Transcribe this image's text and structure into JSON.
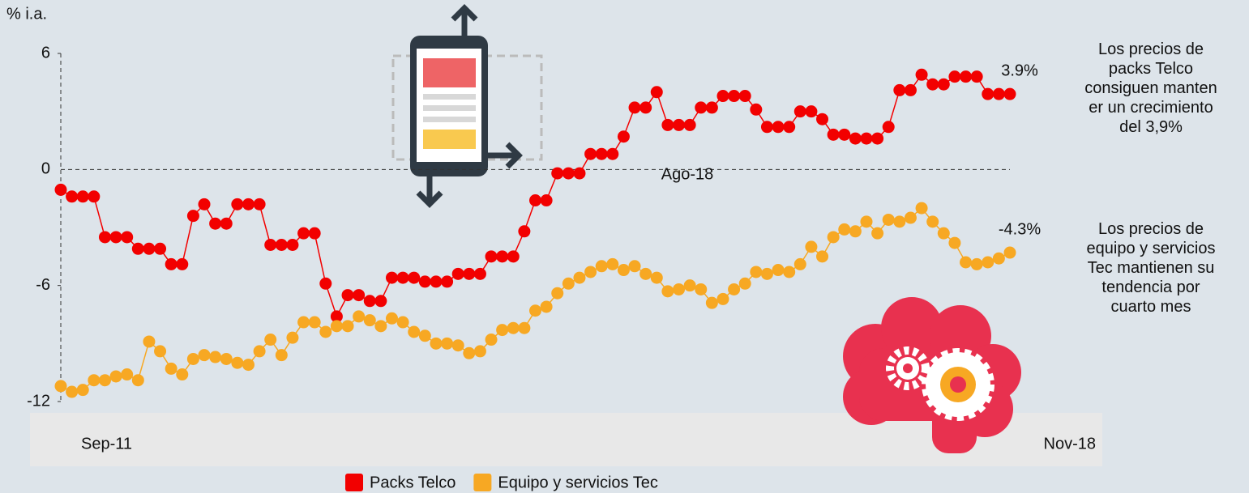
{
  "chart_data": {
    "type": "line",
    "y_axis_label": "% i.a.",
    "categories": [
      "Sep-11",
      null,
      null,
      null,
      null,
      null,
      null,
      null,
      null,
      null,
      null,
      null,
      null,
      null,
      null,
      null,
      null,
      null,
      null,
      null,
      null,
      null,
      null,
      null,
      null,
      null,
      null,
      null,
      null,
      null,
      null,
      null,
      null,
      null,
      null,
      null,
      null,
      null,
      null,
      null,
      null,
      null,
      null,
      null,
      null,
      null,
      null,
      null,
      null,
      null,
      null,
      null,
      null,
      null,
      null,
      null,
      null,
      null,
      null,
      null,
      null,
      null,
      null,
      null,
      null,
      null,
      null,
      null,
      null,
      null,
      null,
      null,
      null,
      null,
      null,
      null,
      null,
      null,
      null,
      null,
      null,
      null,
      null,
      null,
      null,
      null,
      "Nov-18"
    ],
    "series": [
      {
        "name": "Packs Telco",
        "color": "#f20000",
        "values": [
          -1.05,
          -1.4,
          -1.4,
          -1.4,
          -3.5,
          -3.5,
          -3.5,
          -4.1,
          -4.1,
          -4.1,
          -4.9,
          -4.9,
          -2.4,
          -1.8,
          -2.8,
          -2.8,
          -1.8,
          -1.8,
          -1.8,
          -3.9,
          -3.9,
          -3.9,
          -3.3,
          -3.3,
          -5.9,
          -7.6,
          -6.5,
          -6.5,
          -6.8,
          -6.8,
          -5.6,
          -5.6,
          -5.6,
          -5.8,
          -5.8,
          -5.8,
          -5.4,
          -5.4,
          -5.4,
          -4.5,
          -4.5,
          -4.5,
          -3.2,
          -1.6,
          -1.6,
          -0.2,
          -0.2,
          -0.2,
          0.8,
          0.8,
          0.8,
          1.7,
          3.2,
          3.2,
          4.0,
          2.3,
          2.3,
          2.3,
          3.2,
          3.2,
          3.8,
          3.8,
          3.8,
          3.1,
          2.2,
          2.2,
          2.2,
          3.0,
          3.0,
          2.6,
          1.8,
          1.8,
          1.6,
          1.6,
          1.6,
          2.2,
          4.1,
          4.1,
          4.9,
          4.4,
          4.4,
          4.8,
          4.8,
          4.8,
          3.9,
          3.9,
          3.9
        ],
        "value_labels": [
          null,
          null,
          null,
          null,
          null,
          null,
          null,
          null,
          null,
          null,
          null,
          null,
          null,
          null,
          null,
          null,
          null,
          null,
          null,
          null,
          null,
          null,
          null,
          null,
          null,
          null,
          null,
          null,
          null,
          null,
          null,
          null,
          null,
          null,
          null,
          null,
          null,
          null,
          null,
          null,
          null,
          null,
          null,
          null,
          null,
          null,
          null,
          null,
          null,
          null,
          null,
          null,
          null,
          null,
          null,
          null,
          null,
          null,
          null,
          null,
          null,
          null,
          null,
          null,
          null,
          null,
          null,
          null,
          null,
          null,
          null,
          null,
          null,
          null,
          null,
          null,
          null,
          null,
          null,
          null,
          null,
          null,
          null,
          null,
          null,
          null,
          "3.9%"
        ]
      },
      {
        "name": "Equipo y servicios Tec",
        "color": "#f7a823",
        "values": [
          -11.2,
          -11.5,
          -11.4,
          -10.9,
          -10.9,
          -10.7,
          -10.6,
          -10.9,
          -8.9,
          -9.4,
          -10.3,
          -10.6,
          -9.8,
          -9.6,
          -9.7,
          -9.8,
          -10.0,
          -10.1,
          -9.4,
          -8.8,
          -9.6,
          -8.7,
          -7.9,
          -7.9,
          -8.4,
          -8.1,
          -8.1,
          -7.6,
          -7.8,
          -8.1,
          -7.7,
          -7.9,
          -8.4,
          -8.6,
          -9.0,
          -9.0,
          -9.1,
          -9.5,
          -9.4,
          -8.8,
          -8.3,
          -8.2,
          -8.2,
          -7.3,
          -7.1,
          -6.4,
          -5.9,
          -5.6,
          -5.3,
          -5.0,
          -4.9,
          -5.2,
          -5.0,
          -5.4,
          -5.6,
          -6.3,
          -6.2,
          -6.0,
          -6.2,
          -6.9,
          -6.7,
          -6.2,
          -5.9,
          -5.3,
          -5.4,
          -5.2,
          -5.3,
          -4.9,
          -4.0,
          -4.5,
          -3.5,
          -3.1,
          -3.2,
          -2.7,
          -3.3,
          -2.6,
          -2.7,
          -2.5,
          -2.0,
          -2.7,
          -3.3,
          -3.8,
          -4.8,
          -4.9,
          -4.8,
          -4.6,
          -4.3
        ],
        "value_labels": [
          null,
          null,
          null,
          null,
          null,
          null,
          null,
          null,
          null,
          null,
          null,
          null,
          null,
          null,
          null,
          null,
          null,
          null,
          null,
          null,
          null,
          null,
          null,
          null,
          null,
          null,
          null,
          null,
          null,
          null,
          null,
          null,
          null,
          null,
          null,
          null,
          null,
          null,
          null,
          null,
          null,
          null,
          null,
          null,
          null,
          null,
          null,
          null,
          null,
          null,
          null,
          null,
          null,
          null,
          null,
          null,
          null,
          null,
          null,
          null,
          null,
          null,
          null,
          null,
          null,
          null,
          null,
          null,
          null,
          null,
          null,
          null,
          null,
          null,
          null,
          null,
          null,
          null,
          null,
          null,
          null,
          null,
          null,
          null,
          null,
          null,
          "-4.3%"
        ]
      }
    ],
    "ylim": [
      -12,
      6
    ],
    "yticks": [
      6,
      0,
      -6,
      -12
    ],
    "annotations": [
      {
        "text": "Ago-18"
      },
      {
        "lines": [
          "Los precios de",
          "packs Telco",
          "consiguen manten",
          "er un crecimiento",
          "del 3,9%"
        ]
      },
      {
        "lines": [
          "Los precios de",
          "equipo y servicios",
          "Tec mantienen su",
          "tendencia por",
          "cuarto mes"
        ]
      }
    ],
    "legend": "bottom"
  }
}
